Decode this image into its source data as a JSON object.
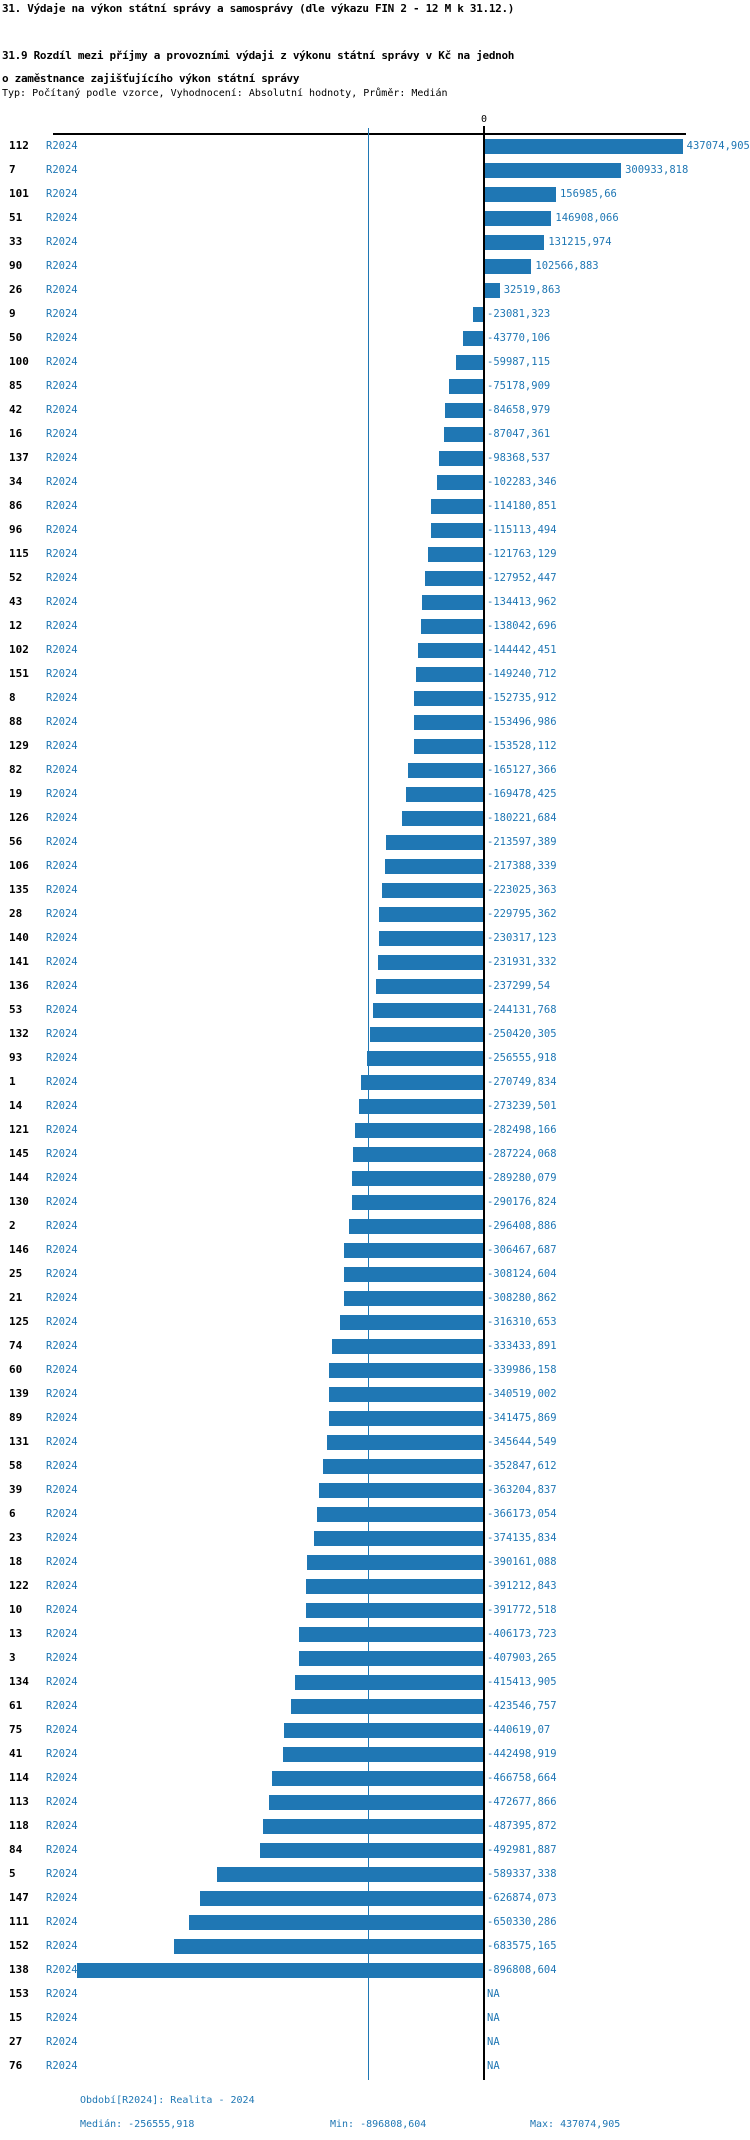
{
  "header": {
    "title": "31. Výdaje na výkon státní správy a samosprávy (dle výkazu FIN 2 - 12 M k 31.12.)",
    "subtitle_line1": "31.9 Rozdíl mezi příjmy a provozními výdaji z výkonu státní správy v Kč na jednoh",
    "subtitle_line2": "o zaměstnance zajišťujícího výkon státní správy",
    "meta": "Typ: Počítaný podle vzorce, Vyhodnocení: Absolutní hodnoty, Průměr: Medián"
  },
  "footer": {
    "period": "Období[R2024]: Realita - 2024",
    "median": "Medián: -256555,918",
    "min": "Min: -896808,604",
    "max": "Max: 437074,905"
  },
  "chart_data": {
    "type": "bar",
    "orientation": "horizontal",
    "title": "31.9 Rozdíl mezi příjmy a provozními výdaji z výkonu státní správy v Kč na jednoho zaměstnance zajišťujícího výkon státní správy",
    "period_label": "R2024",
    "zero_label": "0",
    "na_label": "NA",
    "bar_color": "#1f77b4",
    "median_value": -256555.918,
    "min_value": -896808.604,
    "max_value": 437074.905,
    "xlim": [
      -950000,
      450000
    ],
    "legend_position": "none",
    "grid": false,
    "rows": [
      {
        "id": "112",
        "label": "437074,905",
        "value": 437074.905
      },
      {
        "id": "7",
        "label": "300933,818",
        "value": 300933.818
      },
      {
        "id": "101",
        "label": "156985,66",
        "value": 156985.66
      },
      {
        "id": "51",
        "label": "146908,066",
        "value": 146908.066
      },
      {
        "id": "33",
        "label": "131215,974",
        "value": 131215.974
      },
      {
        "id": "90",
        "label": "102566,883",
        "value": 102566.883
      },
      {
        "id": "26",
        "label": "32519,863",
        "value": 32519.863
      },
      {
        "id": "9",
        "label": "-23081,323",
        "value": -23081.323
      },
      {
        "id": "50",
        "label": "-43770,106",
        "value": -43770.106
      },
      {
        "id": "100",
        "label": "-59987,115",
        "value": -59987.115
      },
      {
        "id": "85",
        "label": "-75178,909",
        "value": -75178.909
      },
      {
        "id": "42",
        "label": "-84658,979",
        "value": -84658.979
      },
      {
        "id": "16",
        "label": "-87047,361",
        "value": -87047.361
      },
      {
        "id": "137",
        "label": "-98368,537",
        "value": -98368.537
      },
      {
        "id": "34",
        "label": "-102283,346",
        "value": -102283.346
      },
      {
        "id": "86",
        "label": "-114180,851",
        "value": -114180.851
      },
      {
        "id": "96",
        "label": "-115113,494",
        "value": -115113.494
      },
      {
        "id": "115",
        "label": "-121763,129",
        "value": -121763.129
      },
      {
        "id": "52",
        "label": "-127952,447",
        "value": -127952.447
      },
      {
        "id": "43",
        "label": "-134413,962",
        "value": -134413.962
      },
      {
        "id": "12",
        "label": "-138042,696",
        "value": -138042.696
      },
      {
        "id": "102",
        "label": "-144442,451",
        "value": -144442.451
      },
      {
        "id": "151",
        "label": "-149240,712",
        "value": -149240.712
      },
      {
        "id": "8",
        "label": "-152735,912",
        "value": -152735.912
      },
      {
        "id": "88",
        "label": "-153496,986",
        "value": -153496.986
      },
      {
        "id": "129",
        "label": "-153528,112",
        "value": -153528.112
      },
      {
        "id": "82",
        "label": "-165127,366",
        "value": -165127.366
      },
      {
        "id": "19",
        "label": "-169478,425",
        "value": -169478.425
      },
      {
        "id": "126",
        "label": "-180221,684",
        "value": -180221.684
      },
      {
        "id": "56",
        "label": "-213597,389",
        "value": -213597.389
      },
      {
        "id": "106",
        "label": "-217388,339",
        "value": -217388.339
      },
      {
        "id": "135",
        "label": "-223025,363",
        "value": -223025.363
      },
      {
        "id": "28",
        "label": "-229795,362",
        "value": -229795.362
      },
      {
        "id": "140",
        "label": "-230317,123",
        "value": -230317.123
      },
      {
        "id": "141",
        "label": "-231931,332",
        "value": -231931.332
      },
      {
        "id": "136",
        "label": "-237299,54",
        "value": -237299.54
      },
      {
        "id": "53",
        "label": "-244131,768",
        "value": -244131.768
      },
      {
        "id": "132",
        "label": "-250420,305",
        "value": -250420.305
      },
      {
        "id": "93",
        "label": "-256555,918",
        "value": -256555.918
      },
      {
        "id": "1",
        "label": "-270749,834",
        "value": -270749.834
      },
      {
        "id": "14",
        "label": "-273239,501",
        "value": -273239.501
      },
      {
        "id": "121",
        "label": "-282498,166",
        "value": -282498.166
      },
      {
        "id": "145",
        "label": "-287224,068",
        "value": -287224.068
      },
      {
        "id": "144",
        "label": "-289280,079",
        "value": -289280.079
      },
      {
        "id": "130",
        "label": "-290176,824",
        "value": -290176.824
      },
      {
        "id": "2",
        "label": "-296408,886",
        "value": -296408.886
      },
      {
        "id": "146",
        "label": "-306467,687",
        "value": -306467.687
      },
      {
        "id": "25",
        "label": "-308124,604",
        "value": -308124.604
      },
      {
        "id": "21",
        "label": "-308280,862",
        "value": -308280.862
      },
      {
        "id": "125",
        "label": "-316310,653",
        "value": -316310.653
      },
      {
        "id": "74",
        "label": "-333433,891",
        "value": -333433.891
      },
      {
        "id": "60",
        "label": "-339986,158",
        "value": -339986.158
      },
      {
        "id": "139",
        "label": "-340519,002",
        "value": -340519.002
      },
      {
        "id": "89",
        "label": "-341475,869",
        "value": -341475.869
      },
      {
        "id": "131",
        "label": "-345644,549",
        "value": -345644.549
      },
      {
        "id": "58",
        "label": "-352847,612",
        "value": -352847.612
      },
      {
        "id": "39",
        "label": "-363204,837",
        "value": -363204.837
      },
      {
        "id": "6",
        "label": "-366173,054",
        "value": -366173.054
      },
      {
        "id": "23",
        "label": "-374135,834",
        "value": -374135.834
      },
      {
        "id": "18",
        "label": "-390161,088",
        "value": -390161.088
      },
      {
        "id": "122",
        "label": "-391212,843",
        "value": -391212.843
      },
      {
        "id": "10",
        "label": "-391772,518",
        "value": -391772.518
      },
      {
        "id": "13",
        "label": "-406173,723",
        "value": -406173.723
      },
      {
        "id": "3",
        "label": "-407903,265",
        "value": -407903.265
      },
      {
        "id": "134",
        "label": "-415413,905",
        "value": -415413.905
      },
      {
        "id": "61",
        "label": "-423546,757",
        "value": -423546.757
      },
      {
        "id": "75",
        "label": "-440619,07",
        "value": -440619.07
      },
      {
        "id": "41",
        "label": "-442498,919",
        "value": -442498.919
      },
      {
        "id": "114",
        "label": "-466758,664",
        "value": -466758.664
      },
      {
        "id": "113",
        "label": "-472677,866",
        "value": -472677.866
      },
      {
        "id": "118",
        "label": "-487395,872",
        "value": -487395.872
      },
      {
        "id": "84",
        "label": "-492981,887",
        "value": -492981.887
      },
      {
        "id": "5",
        "label": "-589337,338",
        "value": -589337.338
      },
      {
        "id": "147",
        "label": "-626874,073",
        "value": -626874.073
      },
      {
        "id": "111",
        "label": "-650330,286",
        "value": -650330.286
      },
      {
        "id": "152",
        "label": "-683575,165",
        "value": -683575.165
      },
      {
        "id": "138",
        "label": "-896808,604",
        "value": -896808.604
      },
      {
        "id": "153",
        "label": "NA",
        "value": null
      },
      {
        "id": "15",
        "label": "NA",
        "value": null
      },
      {
        "id": "27",
        "label": "NA",
        "value": null
      },
      {
        "id": "76",
        "label": "NA",
        "value": null
      }
    ]
  }
}
